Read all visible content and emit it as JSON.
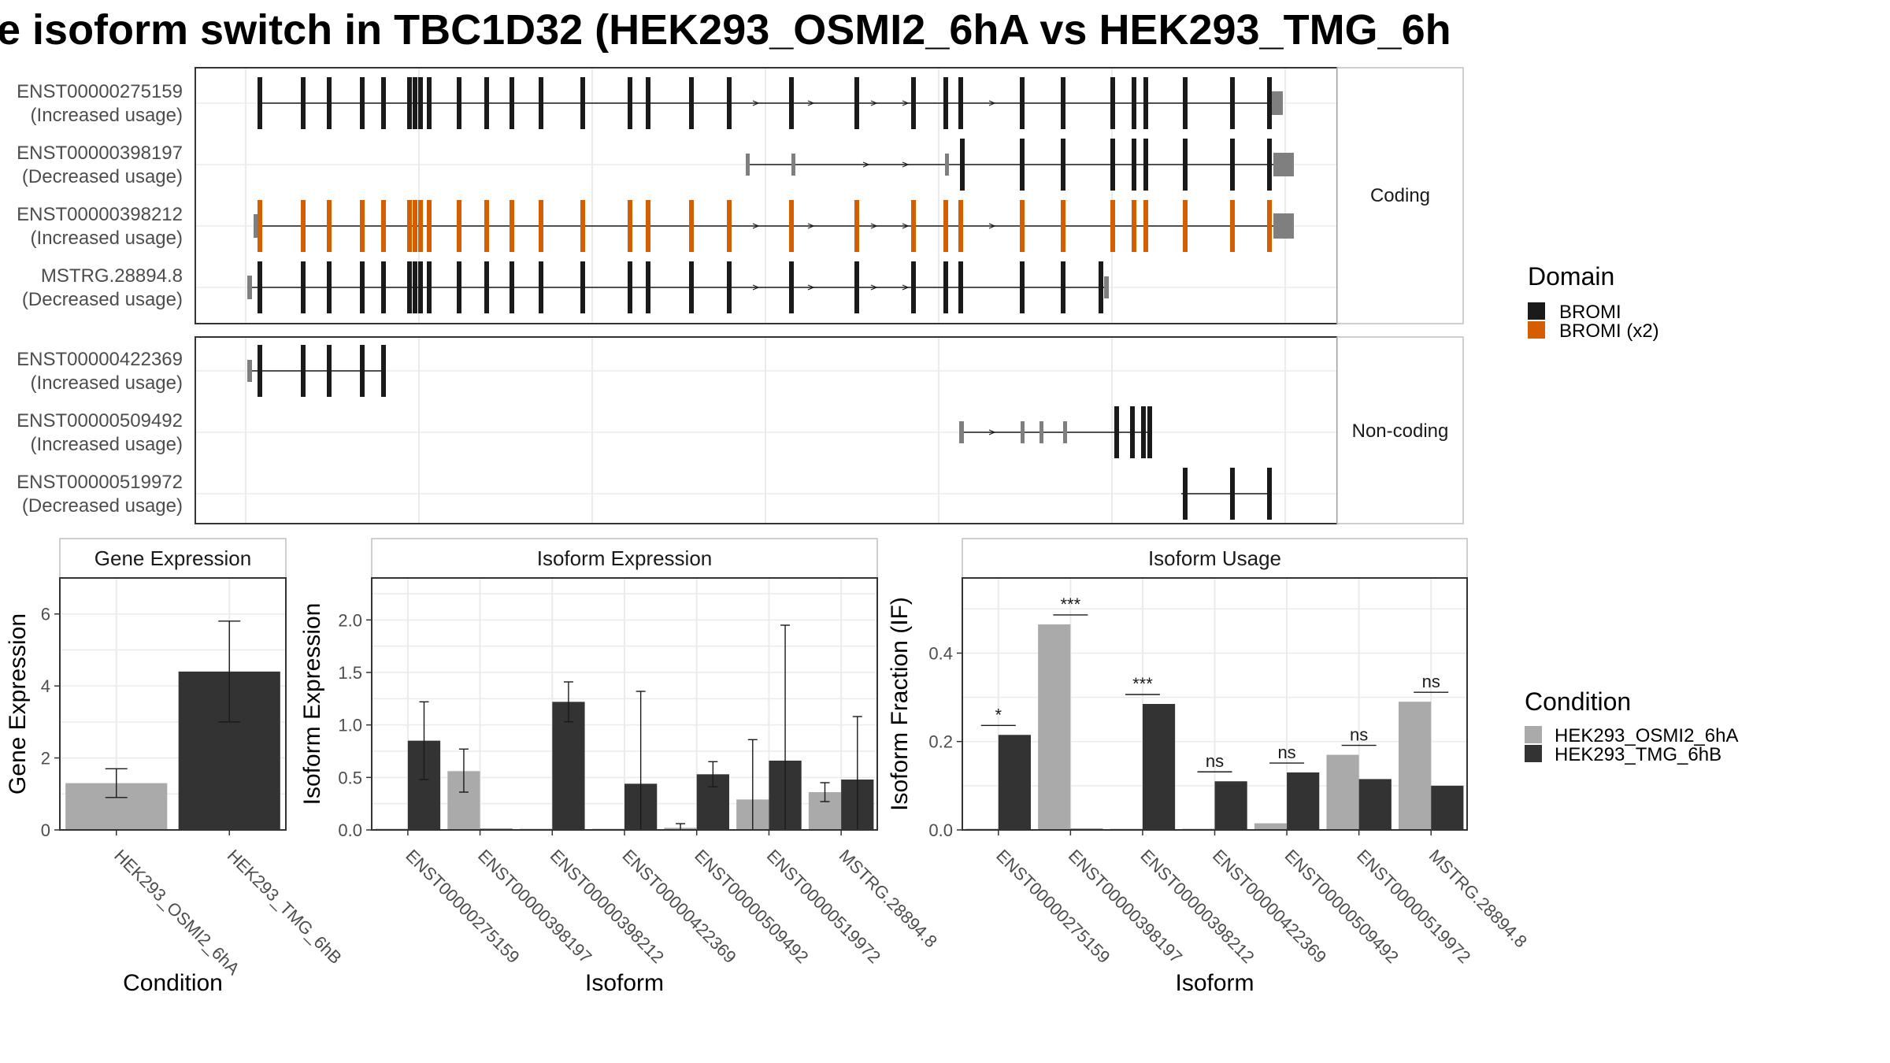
{
  "title": "e isoform switch in TBC1D32 (HEK293_OSMI2_6hA vs HEK293_TMG_6h",
  "colors": {
    "exon": "#1a1a1a",
    "domain_bromi": "#1a1a1a",
    "domain_bromi_x2": "#d55e00",
    "utr": "#7f7f7f",
    "cond_a": "#aaaaaa",
    "cond_b": "#333333",
    "panel_border": "#333333",
    "grid": "#ebebeb",
    "strip_border": "#bfbfbf"
  },
  "structure": {
    "coding_strip": "Coding",
    "noncoding_strip": "Non-coding",
    "transcripts": [
      {
        "id": "ENST00000275159",
        "usage": "(Increased usage)",
        "group": "coding"
      },
      {
        "id": "ENST00000398197",
        "usage": "(Decreased usage)",
        "group": "coding"
      },
      {
        "id": "ENST00000398212",
        "usage": "(Increased usage)",
        "group": "coding"
      },
      {
        "id": "MSTRG.28894.8",
        "usage": "(Decreased usage)",
        "group": "coding"
      },
      {
        "id": "ENST00000422369",
        "usage": "(Increased usage)",
        "group": "noncoding"
      },
      {
        "id": "ENST00000509492",
        "usage": "(Increased usage)",
        "group": "noncoding"
      },
      {
        "id": "ENST00000519972",
        "usage": "(Decreased usage)",
        "group": "noncoding"
      }
    ]
  },
  "legend_domain": {
    "title": "Domain",
    "items": [
      {
        "label": "BROMI",
        "color": "#1a1a1a"
      },
      {
        "label": "BROMI (x2)",
        "color": "#d55e00"
      }
    ]
  },
  "legend_condition": {
    "title": "Condition",
    "items": [
      {
        "label": "HEK293_OSMI2_6hA",
        "color": "#aaaaaa"
      },
      {
        "label": "HEK293_TMG_6hB",
        "color": "#333333"
      }
    ]
  },
  "chart_data": [
    {
      "type": "bar",
      "title": "Gene Expression",
      "xlabel": "Condition",
      "ylabel": "Gene Expression",
      "ylim": [
        0,
        7
      ],
      "yticks": [
        0,
        2,
        4,
        6
      ],
      "categories": [
        "HEK293_OSMI2_6hA",
        "HEK293_TMG_6hB"
      ],
      "values": [
        1.3,
        4.4
      ],
      "error_low": [
        0.9,
        3.0
      ],
      "error_high": [
        1.7,
        5.8
      ]
    },
    {
      "type": "bar",
      "title": "Isoform Expression",
      "xlabel": "Isoform",
      "ylabel": "Isoform Expression",
      "ylim": [
        0,
        2.4
      ],
      "yticks": [
        0.0,
        0.5,
        1.0,
        1.5,
        2.0
      ],
      "ytick_labels": [
        "0.0",
        "0.5",
        "1.0",
        "1.5",
        "2.0"
      ],
      "categories": [
        "ENST00000275159",
        "ENST00000398197",
        "ENST00000398212",
        "ENST00000422369",
        "ENST00000509492",
        "ENST00000519972",
        "MSTRG.28894.8"
      ],
      "series": [
        {
          "name": "HEK293_OSMI2_6hA",
          "values": [
            0.0,
            0.56,
            0.0,
            0.0,
            0.02,
            0.29,
            0.36
          ],
          "error_low": [
            0.0,
            0.36,
            0.0,
            0.0,
            0.0,
            0.0,
            0.27
          ],
          "error_high": [
            0.0,
            0.77,
            0.0,
            0.0,
            0.06,
            0.86,
            0.45
          ]
        },
        {
          "name": "HEK293_TMG_6hB",
          "values": [
            0.85,
            0.0,
            1.22,
            0.44,
            0.53,
            0.66,
            0.48
          ],
          "error_low": [
            0.48,
            0.0,
            1.03,
            0.0,
            0.41,
            0.0,
            0.0
          ],
          "error_high": [
            1.22,
            0.0,
            1.41,
            1.32,
            0.65,
            1.95,
            1.08
          ]
        }
      ]
    },
    {
      "type": "bar",
      "title": "Isoform Usage",
      "xlabel": "Isoform",
      "ylabel": "Isoform Fraction (IF)",
      "ylim": [
        0,
        0.57
      ],
      "yticks": [
        0.0,
        0.2,
        0.4
      ],
      "ytick_labels": [
        "0.0",
        "0.2",
        "0.4"
      ],
      "categories": [
        "ENST00000275159",
        "ENST00000398197",
        "ENST00000398212",
        "ENST00000422369",
        "ENST00000509492",
        "ENST00000519972",
        "MSTRG.28894.8"
      ],
      "series": [
        {
          "name": "HEK293_OSMI2_6hA",
          "values": [
            0.0,
            0.465,
            0.0,
            0.0,
            0.015,
            0.17,
            0.29
          ]
        },
        {
          "name": "HEK293_TMG_6hB",
          "values": [
            0.215,
            0.0,
            0.285,
            0.11,
            0.13,
            0.115,
            0.1
          ]
        }
      ],
      "significance": [
        "*",
        "***",
        "***",
        "ns",
        "ns",
        "ns",
        "ns"
      ]
    }
  ]
}
